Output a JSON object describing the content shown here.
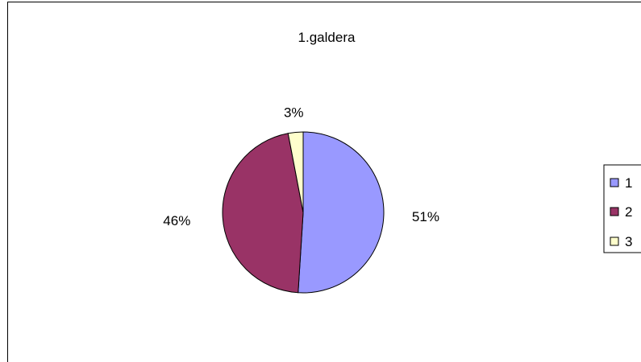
{
  "chart_data": {
    "type": "pie",
    "title": "1.galdera",
    "slices": [
      {
        "label": "1",
        "value": 51,
        "percent_label": "51%",
        "color": "#9999ff"
      },
      {
        "label": "2",
        "value": 46,
        "percent_label": "46%",
        "color": "#993366"
      },
      {
        "label": "3",
        "value": 3,
        "percent_label": "3%",
        "color": "#ffffcc"
      }
    ],
    "legend": {
      "placement": "right",
      "entries": [
        "1",
        "2",
        "3"
      ]
    }
  }
}
